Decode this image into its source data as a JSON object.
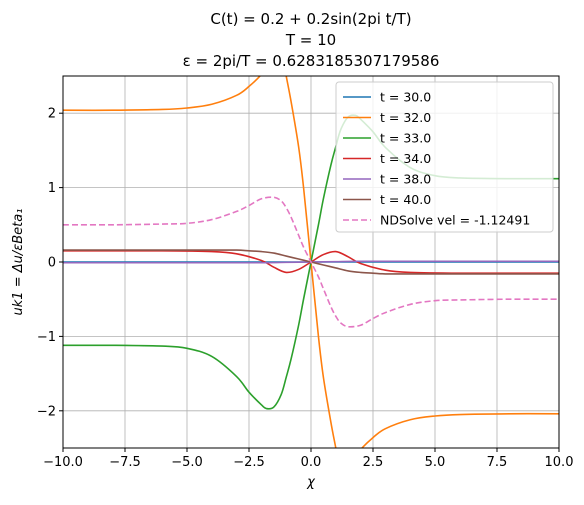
{
  "chart_data": {
    "type": "line",
    "title_lines": [
      "C(t) = 0.2 + 0.2sin(2pi t/T)",
      "T = 10",
      "ε = 2pi/T = 0.6283185307179586"
    ],
    "xlabel": "χ",
    "ylabel": "uk1 = Δu/εBeta₁",
    "xlim": [
      -10,
      10
    ],
    "ylim": [
      -2.5,
      2.5
    ],
    "xticks": [
      -10,
      -7.5,
      -5,
      -2.5,
      0,
      2.5,
      5,
      7.5,
      10
    ],
    "xtick_labels": [
      "−10.0",
      "−7.5",
      "−5.0",
      "−2.5",
      "0.0",
      "2.5",
      "5.0",
      "7.5",
      "10.0"
    ],
    "yticks": [
      -2,
      -1,
      0,
      1,
      2
    ],
    "ytick_labels": [
      "−2",
      "−1",
      "0",
      "1",
      "2"
    ],
    "grid": true,
    "legend_position": "top-right",
    "series": [
      {
        "name": "t = 30.0",
        "color": "#1f77b4",
        "dashed": false,
        "x": [
          -10,
          -5,
          -2,
          -1,
          0,
          1,
          2,
          5,
          10
        ],
        "y": [
          0,
          0,
          0,
          0,
          0,
          0,
          0,
          0,
          0
        ]
      },
      {
        "name": "t = 32.0",
        "color": "#ff7f0e",
        "dashed": false,
        "x": [
          -10,
          -8,
          -6,
          -5,
          -4,
          -3,
          -2.5,
          -2,
          -1.8,
          -1.5,
          -1.2,
          -1,
          -0.8,
          -0.5,
          -0.3,
          0,
          0.3,
          0.5,
          0.8,
          1,
          1.2,
          1.5,
          1.8,
          2,
          2.5,
          3,
          4,
          5,
          6,
          8,
          10
        ],
        "y": [
          2.04,
          2.04,
          2.05,
          2.07,
          2.12,
          2.24,
          2.36,
          2.52,
          2.62,
          2.8,
          2.85,
          2.5,
          2.15,
          1.55,
          1.0,
          0,
          -1.0,
          -1.55,
          -2.15,
          -2.5,
          -2.85,
          -2.8,
          -2.62,
          -2.52,
          -2.36,
          -2.24,
          -2.12,
          -2.07,
          -2.05,
          -2.04,
          -2.04
        ]
      },
      {
        "name": "t = 33.0",
        "color": "#2ca02c",
        "dashed": false,
        "x": [
          -10,
          -8,
          -6,
          -5,
          -4,
          -3,
          -2.5,
          -2,
          -1.8,
          -1.5,
          -1.2,
          -1,
          -0.8,
          -0.5,
          -0.3,
          0,
          0.3,
          0.5,
          0.8,
          1,
          1.2,
          1.5,
          1.8,
          2,
          2.5,
          3,
          4,
          5,
          6,
          8,
          10
        ],
        "y": [
          -1.12,
          -1.12,
          -1.13,
          -1.16,
          -1.27,
          -1.54,
          -1.75,
          -1.92,
          -1.97,
          -1.95,
          -1.78,
          -1.55,
          -1.3,
          -0.85,
          -0.5,
          0,
          0.5,
          0.85,
          1.3,
          1.55,
          1.78,
          1.95,
          1.97,
          1.92,
          1.75,
          1.54,
          1.27,
          1.16,
          1.13,
          1.12,
          1.12
        ]
      },
      {
        "name": "t = 34.0",
        "color": "#d62728",
        "dashed": false,
        "x": [
          -10,
          -6,
          -4,
          -3,
          -2,
          -1.5,
          -1,
          -0.5,
          0,
          0.5,
          1,
          1.5,
          2,
          3,
          4,
          6,
          10
        ],
        "y": [
          0.15,
          0.15,
          0.14,
          0.11,
          0.02,
          -0.07,
          -0.14,
          -0.1,
          0,
          0.1,
          0.14,
          0.07,
          -0.02,
          -0.11,
          -0.14,
          -0.15,
          -0.15
        ]
      },
      {
        "name": "t = 38.0",
        "color": "#9467bd",
        "dashed": false,
        "x": [
          -10,
          -5,
          -2,
          -1,
          0,
          1,
          2,
          5,
          10
        ],
        "y": [
          -0.01,
          -0.01,
          -0.01,
          -0.005,
          0,
          0.005,
          0.01,
          0.01,
          0.01
        ]
      },
      {
        "name": "t = 40.0",
        "color": "#8c564b",
        "dashed": false,
        "x": [
          -10,
          -6,
          -4,
          -3,
          -2.5,
          -2,
          -1.5,
          -1,
          -0.5,
          0,
          0.5,
          1,
          1.5,
          2,
          2.5,
          3,
          4,
          6,
          10
        ],
        "y": [
          0.16,
          0.16,
          0.16,
          0.16,
          0.15,
          0.14,
          0.12,
          0.08,
          0.04,
          0,
          -0.04,
          -0.08,
          -0.12,
          -0.14,
          -0.15,
          -0.16,
          -0.16,
          -0.16,
          -0.16
        ]
      },
      {
        "name": "NDSolve vel = -1.12491",
        "color": "#e377c2",
        "dashed": true,
        "x": [
          -10,
          -8,
          -6,
          -5,
          -4,
          -3,
          -2.5,
          -2,
          -1.5,
          -1.2,
          -1,
          -0.8,
          -0.5,
          -0.3,
          0,
          0.3,
          0.5,
          0.8,
          1,
          1.2,
          1.5,
          2,
          2.5,
          3,
          4,
          5,
          6,
          8,
          10
        ],
        "y": [
          0.5,
          0.5,
          0.51,
          0.52,
          0.57,
          0.68,
          0.76,
          0.85,
          0.87,
          0.82,
          0.73,
          0.6,
          0.36,
          0.2,
          0,
          -0.2,
          -0.36,
          -0.6,
          -0.73,
          -0.82,
          -0.87,
          -0.85,
          -0.76,
          -0.68,
          -0.57,
          -0.52,
          -0.51,
          -0.5,
          -0.5
        ]
      }
    ]
  }
}
